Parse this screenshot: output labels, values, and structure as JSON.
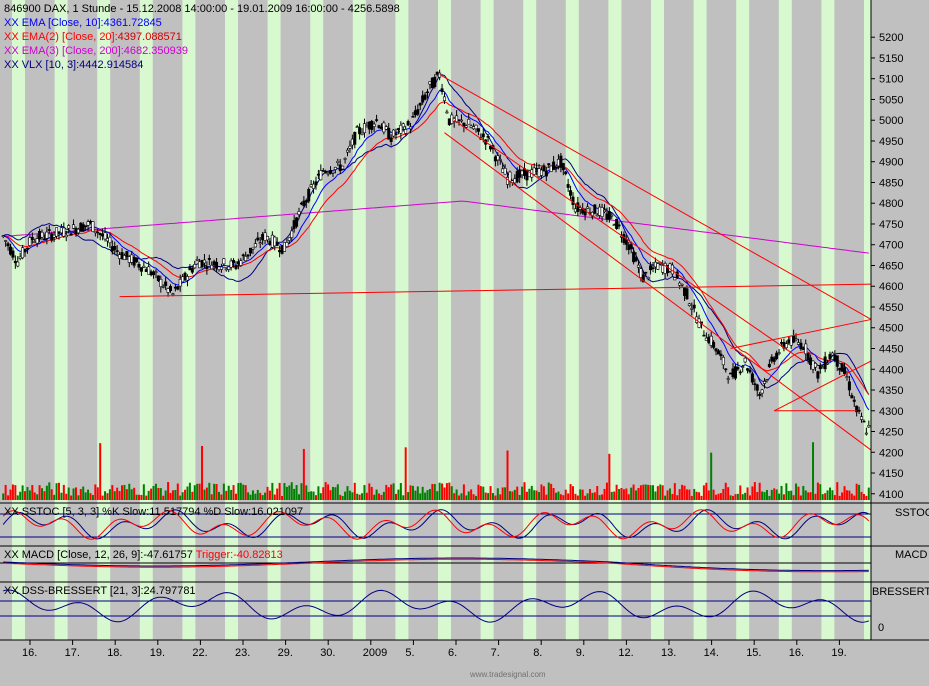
{
  "header": {
    "line1": "846900  DAX, 1 Stunde - 15.12.2008 14:00:00 - 19.01.2009 16:00:00 - 4256.5898",
    "ema10": "EMA [Close, 10]:4361.72845",
    "ema20_name": "EMA(2) [Close, 20]:",
    "ema20_val": "4397.088571",
    "ema200": "EMA(3) [Close, 200]:4682.350939",
    "vlx": "VLX [10, 3]:4442.914584",
    "prefix": "XX"
  },
  "sstoc": {
    "title": "SSTOC [5, 3, 3] %K Slow:11.517794 %D Slow:16.021097",
    "tab": "SSTOC"
  },
  "macd": {
    "title_main": "MACD [Close, 12, 26, 9]:-47.61757 ",
    "title_trig": "Trigger:-40.82813",
    "tab": "MACD"
  },
  "dss": {
    "title": "DSS-BRESSERT [21, 3]:24.797781",
    "tab": "BRESSERT",
    "zero_label": "0"
  },
  "footer": {
    "watermark": "www.tradesignal.com"
  },
  "colors": {
    "background": "#c0c0c0",
    "session_band": "#d8f8d0",
    "ema10": "#0000ff",
    "ema20": "#ff0000",
    "ema200": "#d000d0",
    "vlx": "#000080",
    "volume_up": "#008000",
    "volume_down": "#ff0000",
    "trendline": "#ff0000"
  },
  "chart_data": {
    "type": "candlestick",
    "symbol": "846900 DAX",
    "interval": "1 Stunde",
    "ylim": [
      4085,
      5280
    ],
    "y_ticks": [
      4100,
      4150,
      4200,
      4250,
      4300,
      4350,
      4400,
      4450,
      4500,
      4550,
      4600,
      4650,
      4700,
      4750,
      4800,
      4850,
      4900,
      4950,
      5000,
      5050,
      5100,
      5150,
      5200
    ],
    "x_ticks": [
      "16.",
      "17.",
      "18.",
      "19.",
      "22.",
      "23.",
      "29.",
      "30.",
      "2009",
      "5.",
      "6.",
      "7.",
      "8.",
      "9.",
      "12.",
      "13.",
      "14.",
      "15.",
      "16.",
      "19."
    ],
    "price_anchors": [
      [
        0,
        4720
      ],
      [
        6,
        4660
      ],
      [
        12,
        4715
      ],
      [
        24,
        4730
      ],
      [
        36,
        4750
      ],
      [
        48,
        4680
      ],
      [
        60,
        4640
      ],
      [
        70,
        4580
      ],
      [
        80,
        4660
      ],
      [
        96,
        4650
      ],
      [
        108,
        4720
      ],
      [
        116,
        4690
      ],
      [
        124,
        4800
      ],
      [
        132,
        4880
      ],
      [
        140,
        4890
      ],
      [
        146,
        4970
      ],
      [
        154,
        5000
      ],
      [
        160,
        4960
      ],
      [
        168,
        4990
      ],
      [
        176,
        5080
      ],
      [
        180,
        5110
      ],
      [
        184,
        5000
      ],
      [
        192,
        4990
      ],
      [
        200,
        4950
      ],
      [
        208,
        4860
      ],
      [
        216,
        4870
      ],
      [
        224,
        4880
      ],
      [
        230,
        4900
      ],
      [
        236,
        4790
      ],
      [
        246,
        4780
      ],
      [
        252,
        4760
      ],
      [
        258,
        4700
      ],
      [
        264,
        4620
      ],
      [
        270,
        4650
      ],
      [
        276,
        4640
      ],
      [
        282,
        4580
      ],
      [
        288,
        4500
      ],
      [
        294,
        4450
      ],
      [
        300,
        4380
      ],
      [
        306,
        4420
      ],
      [
        312,
        4340
      ],
      [
        318,
        4430
      ],
      [
        324,
        4470
      ],
      [
        330,
        4460
      ],
      [
        336,
        4390
      ],
      [
        342,
        4440
      ],
      [
        348,
        4380
      ],
      [
        352,
        4300
      ],
      [
        356,
        4256
      ]
    ],
    "series": [
      {
        "name": "EMA [Close, 10]",
        "last": 4361.72845
      },
      {
        "name": "EMA(2) [Close, 20]",
        "last": 4397.088571
      },
      {
        "name": "EMA(3) [Close, 200]",
        "last": 4682.350939
      },
      {
        "name": "VLX [10, 3]",
        "last": 4442.914584
      }
    ],
    "trendlines": [
      {
        "from": [
          48,
          4575
        ],
        "to": [
          358,
          4605
        ]
      },
      {
        "from": [
          180,
          5110
        ],
        "to": [
          358,
          4520
        ]
      },
      {
        "from": [
          182,
          4970
        ],
        "to": [
          358,
          4205
        ]
      },
      {
        "from": [
          300,
          4450
        ],
        "to": [
          358,
          4520
        ]
      },
      {
        "from": [
          318,
          4300
        ],
        "to": [
          358,
          4420
        ]
      },
      {
        "from": [
          318,
          4300
        ],
        "to": [
          352,
          4300
        ]
      },
      {
        "from": [
          186,
          5000
        ],
        "to": [
          330,
          4420
        ]
      }
    ],
    "indicators": {
      "sstoc": {
        "k_last": 11.517794,
        "d_last": 16.021097
      },
      "macd": {
        "macd_last": -47.61757,
        "trigger_last": -40.82813
      },
      "dss": {
        "last": 24.797781
      }
    }
  }
}
